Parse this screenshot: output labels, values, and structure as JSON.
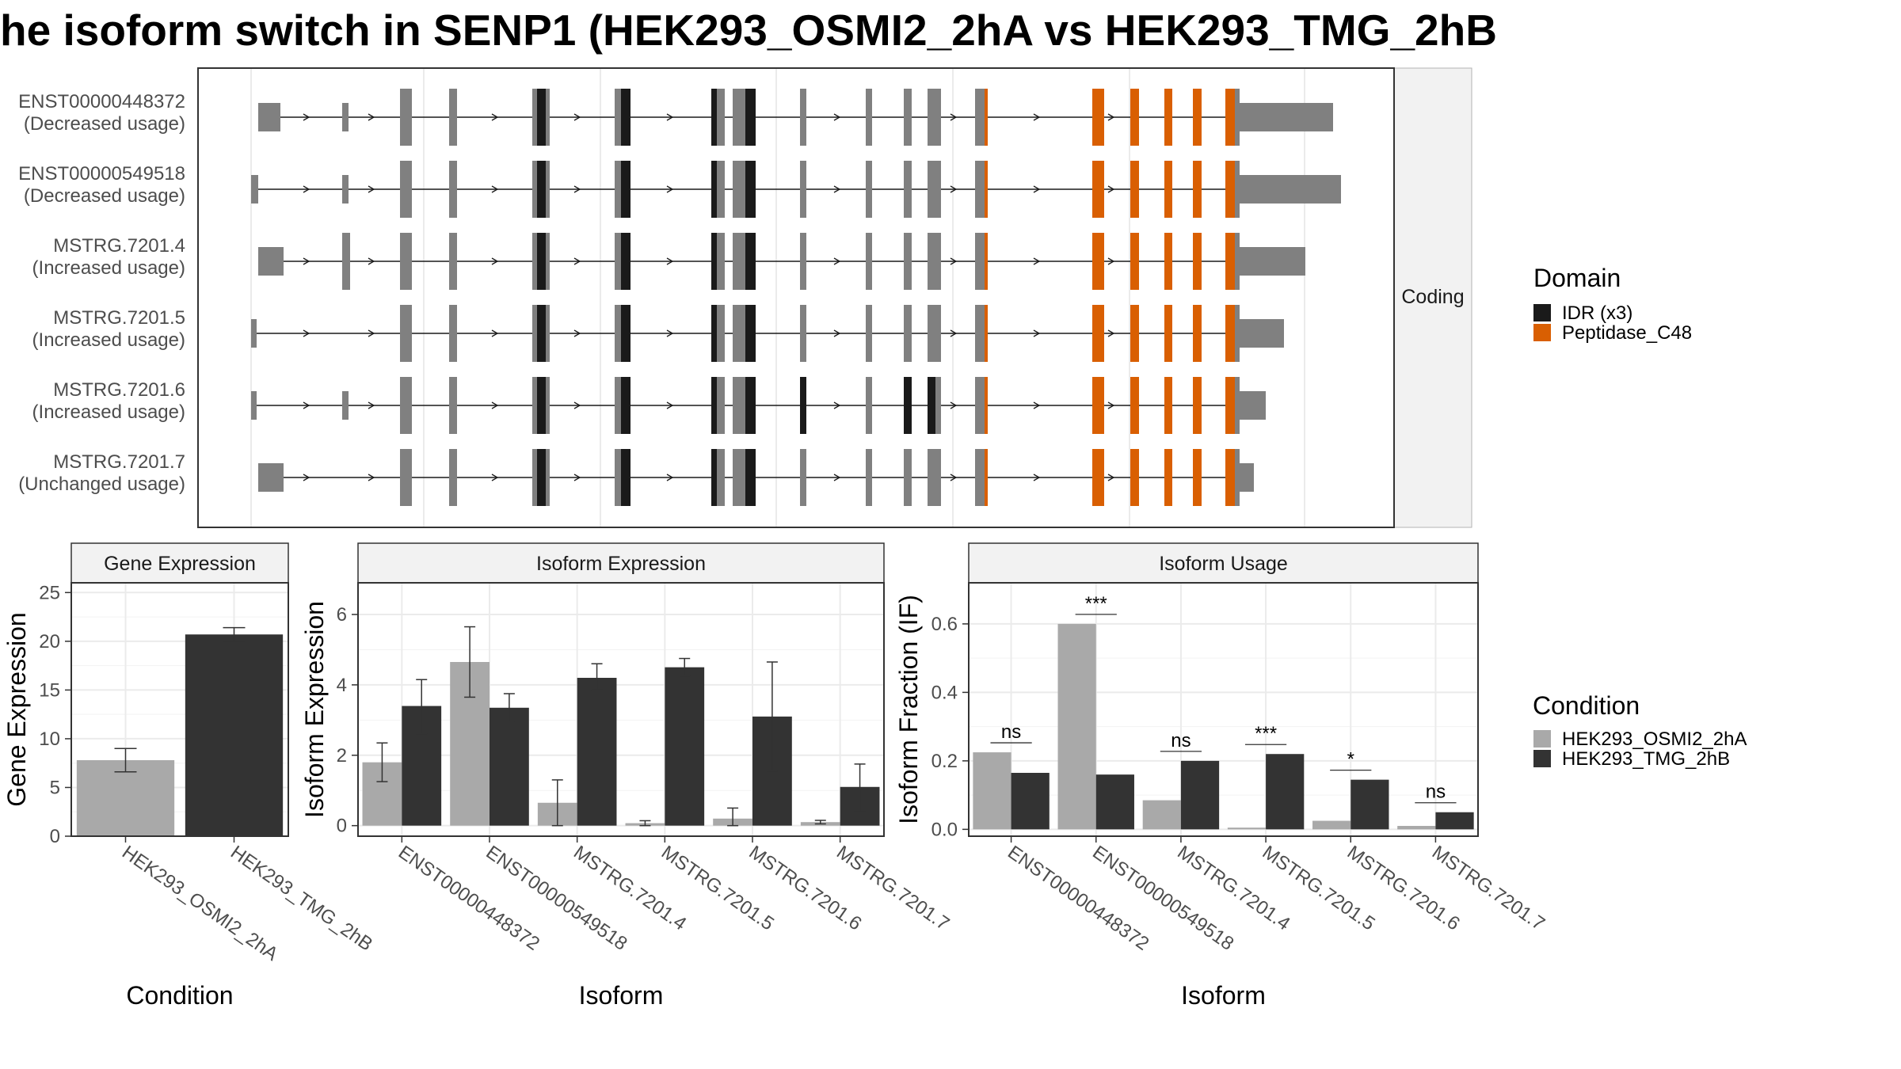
{
  "title": "he isoform switch in SENP1 (HEK293_OSMI2_2hA vs HEK293_TMG_2hB",
  "colors": {
    "exon": "#808080",
    "idr": "#1a1a1a",
    "peptidase": "#d95f02",
    "osmi": "#a9a9a9",
    "tmg": "#333333",
    "strip": "#f2f2f2",
    "grid": "#ebebeb"
  },
  "structure": {
    "strip_label": "Coding",
    "transcripts": [
      {
        "id": "ENST00000448372",
        "usage": "(Decreased usage)"
      },
      {
        "id": "ENST00000549518",
        "usage": "(Decreased usage)"
      },
      {
        "id": "MSTRG.7201.4",
        "usage": "(Increased usage)"
      },
      {
        "id": "MSTRG.7201.5",
        "usage": "(Increased usage)"
      },
      {
        "id": "MSTRG.7201.6",
        "usage": "(Increased usage)"
      },
      {
        "id": "MSTRG.7201.7",
        "usage": "(Unchanged usage)"
      }
    ],
    "domain_legend": {
      "title": "Domain",
      "items": [
        {
          "label": "IDR (x3)",
          "color": "#1a1a1a"
        },
        {
          "label": "Peptidase_C48",
          "color": "#d95f02"
        }
      ]
    }
  },
  "chart_data": [
    {
      "type": "bar",
      "title": "Gene Expression",
      "xlabel": "Condition",
      "ylabel": "Gene Expression",
      "ylim": [
        0,
        26
      ],
      "yticks": [
        0,
        5,
        10,
        15,
        20,
        25
      ],
      "categories": [
        "HEK293_OSMI2_2hA",
        "HEK293_TMG_2hB"
      ],
      "values": [
        7.8,
        20.7
      ],
      "error": [
        [
          6.6,
          9.0
        ],
        [
          20.0,
          21.4
        ]
      ]
    },
    {
      "type": "bar",
      "title": "Isoform Expression",
      "xlabel": "Isoform",
      "ylabel": "Isoform Expression",
      "ylim": [
        -0.3,
        6.9
      ],
      "yticks": [
        0,
        2,
        4,
        6
      ],
      "categories": [
        "ENST00000448372",
        "ENST00000549518",
        "MSTRG.7201.4",
        "MSTRG.7201.5",
        "MSTRG.7201.6",
        "MSTRG.7201.7"
      ],
      "series": [
        {
          "name": "HEK293_OSMI2_2hA",
          "values": [
            1.8,
            4.65,
            0.65,
            0.07,
            0.2,
            0.1
          ],
          "error": [
            [
              1.25,
              2.35
            ],
            [
              3.65,
              5.65
            ],
            [
              0.0,
              1.3
            ],
            [
              0.0,
              0.14
            ],
            [
              0.0,
              0.5
            ],
            [
              0.05,
              0.15
            ]
          ]
        },
        {
          "name": "HEK293_TMG_2hB",
          "values": [
            3.4,
            3.35,
            4.2,
            4.5,
            3.1,
            1.1
          ],
          "error": [
            [
              2.6,
              4.15
            ],
            [
              2.95,
              3.75
            ],
            [
              3.85,
              4.6
            ],
            [
              4.25,
              4.75
            ],
            [
              1.55,
              4.65
            ],
            [
              0.4,
              1.75
            ]
          ]
        }
      ]
    },
    {
      "type": "bar",
      "title": "Isoform Usage",
      "xlabel": "Isoform",
      "ylabel": "Isoform Fraction (IF)",
      "ylim": [
        -0.02,
        0.72
      ],
      "yticks": [
        0.0,
        0.2,
        0.4,
        0.6
      ],
      "categories": [
        "ENST00000448372",
        "ENST00000549518",
        "MSTRG.7201.4",
        "MSTRG.7201.5",
        "MSTRG.7201.6",
        "MSTRG.7201.7"
      ],
      "series": [
        {
          "name": "HEK293_OSMI2_2hA",
          "values": [
            0.225,
            0.6,
            0.085,
            0.005,
            0.025,
            0.01
          ]
        },
        {
          "name": "HEK293_TMG_2hB",
          "values": [
            0.165,
            0.16,
            0.2,
            0.22,
            0.145,
            0.05
          ]
        }
      ],
      "significance": [
        "ns",
        "***",
        "ns",
        "***",
        "*",
        "ns"
      ]
    }
  ],
  "condition_legend": {
    "title": "Condition",
    "items": [
      {
        "label": "HEK293_OSMI2_2hA",
        "color": "#a9a9a9"
      },
      {
        "label": "HEK293_TMG_2hB",
        "color": "#333333"
      }
    ]
  }
}
